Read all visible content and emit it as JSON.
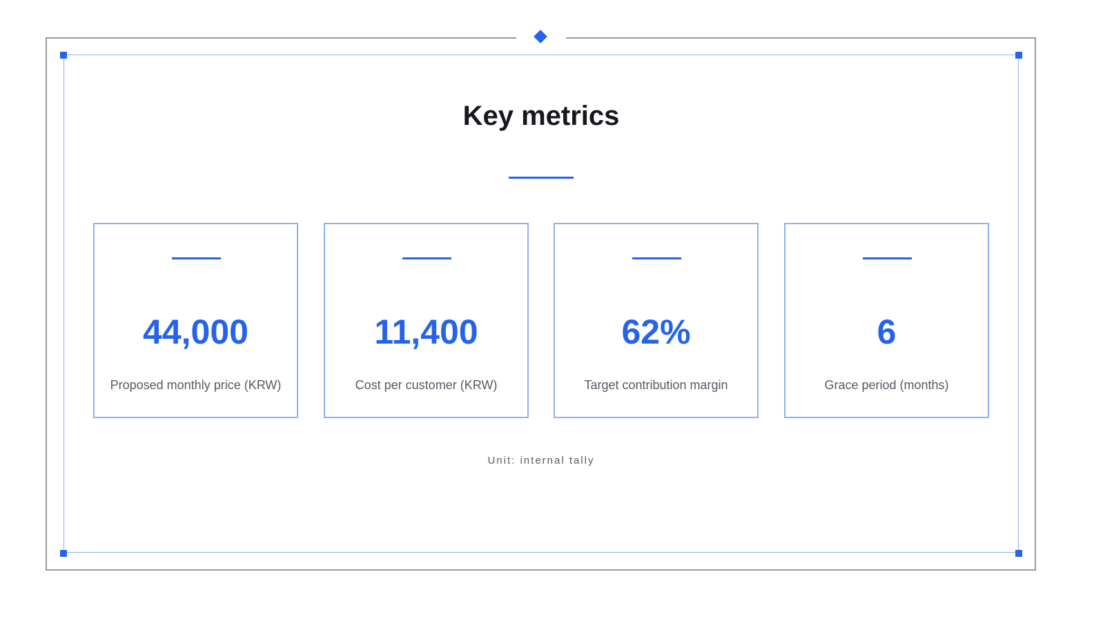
{
  "slide": {
    "title": "Key metrics",
    "note": "Unit: internal tally"
  },
  "metrics": [
    {
      "value": "44,000",
      "label": "Proposed monthly price (KRW)"
    },
    {
      "value": "11,400",
      "label": "Cost per customer (KRW)"
    },
    {
      "value": "62%",
      "label": "Target contribution margin"
    },
    {
      "value": "6",
      "label": "Grace period (months)"
    }
  ],
  "colors": {
    "accent": "#2563eb",
    "frame": "#9a9a9a",
    "title": "#16181d",
    "label": "#555a63"
  },
  "icons": [
    "diamond-marker-icon",
    "corner-handle-icon"
  ]
}
